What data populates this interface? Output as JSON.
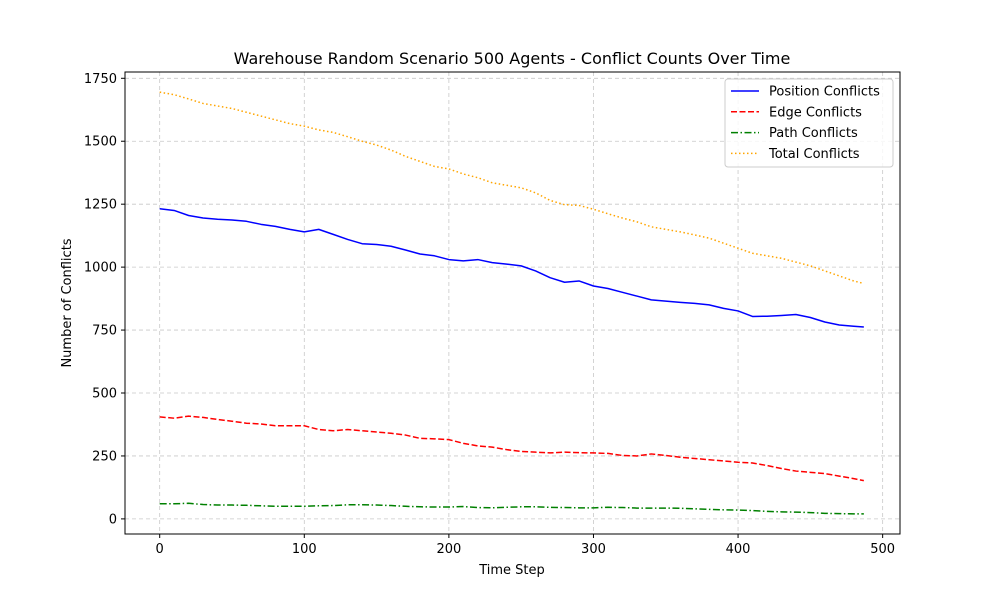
{
  "chart_data": {
    "type": "line",
    "title": "Warehouse Random Scenario 500 Agents - Conflict Counts Over Time",
    "xlabel": "Time Step",
    "ylabel": "Number of Conflicts",
    "xlim": [
      -24,
      512
    ],
    "ylim": [
      -60,
      1775
    ],
    "x_ticks": [
      0,
      100,
      200,
      300,
      400,
      500
    ],
    "y_ticks": [
      0,
      250,
      500,
      750,
      1000,
      1250,
      1500,
      1750
    ],
    "grid": true,
    "legend_position": "top-right",
    "x": [
      0,
      10,
      20,
      30,
      40,
      50,
      60,
      70,
      80,
      90,
      100,
      110,
      120,
      130,
      140,
      150,
      160,
      170,
      180,
      190,
      200,
      210,
      220,
      230,
      240,
      250,
      260,
      270,
      280,
      290,
      300,
      310,
      320,
      330,
      340,
      350,
      360,
      370,
      380,
      390,
      400,
      410,
      420,
      430,
      440,
      450,
      460,
      470,
      480,
      487
    ],
    "series": [
      {
        "name": "Position Conflicts",
        "color": "#0000ff",
        "dash": "solid",
        "values": [
          1232,
          1225,
          1205,
          1195,
          1190,
          1187,
          1182,
          1170,
          1162,
          1150,
          1140,
          1150,
          1130,
          1110,
          1093,
          1090,
          1083,
          1068,
          1052,
          1045,
          1030,
          1025,
          1030,
          1018,
          1012,
          1005,
          985,
          958,
          940,
          945,
          925,
          915,
          900,
          885,
          870,
          865,
          860,
          856,
          850,
          836,
          826,
          804,
          805,
          808,
          812,
          800,
          782,
          770,
          765,
          762
        ]
      },
      {
        "name": "Edge Conflicts",
        "color": "#ff0000",
        "dash": "dashed",
        "values": [
          405,
          400,
          408,
          403,
          395,
          388,
          380,
          377,
          370,
          370,
          370,
          355,
          350,
          355,
          350,
          345,
          340,
          333,
          320,
          318,
          315,
          300,
          290,
          285,
          275,
          268,
          265,
          262,
          265,
          263,
          262,
          260,
          252,
          250,
          258,
          252,
          245,
          240,
          235,
          230,
          225,
          222,
          212,
          200,
          190,
          185,
          180,
          170,
          160,
          152
        ]
      },
      {
        "name": "Path Conflicts",
        "color": "#008000",
        "dash": "dashdot",
        "values": [
          60,
          60,
          62,
          57,
          55,
          55,
          54,
          52,
          50,
          50,
          50,
          52,
          53,
          56,
          56,
          55,
          53,
          50,
          48,
          47,
          47,
          49,
          45,
          44,
          46,
          48,
          48,
          46,
          45,
          44,
          44,
          46,
          45,
          43,
          43,
          43,
          42,
          40,
          38,
          36,
          35,
          33,
          30,
          28,
          27,
          25,
          22,
          21,
          20,
          20
        ]
      },
      {
        "name": "Total Conflicts",
        "color": "#ffa500",
        "dash": "dotted",
        "values": [
          1695,
          1685,
          1668,
          1650,
          1640,
          1630,
          1615,
          1600,
          1585,
          1570,
          1560,
          1545,
          1535,
          1518,
          1500,
          1485,
          1465,
          1440,
          1420,
          1400,
          1390,
          1370,
          1355,
          1335,
          1325,
          1315,
          1295,
          1265,
          1248,
          1245,
          1230,
          1212,
          1195,
          1180,
          1160,
          1150,
          1140,
          1128,
          1115,
          1095,
          1075,
          1055,
          1045,
          1035,
          1020,
          1005,
          985,
          965,
          945,
          935
        ]
      }
    ]
  }
}
